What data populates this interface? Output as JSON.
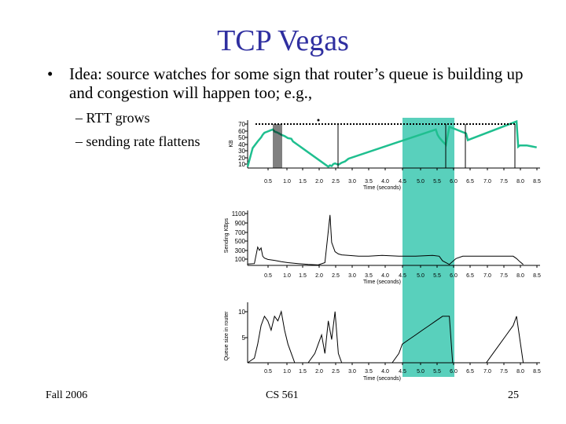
{
  "slide": {
    "title": "TCP Vegas",
    "bullet_marker": "•",
    "bullet_text": "Idea: source watches for some sign that router’s queue is building up and congestion will happen too; e.g.,",
    "sub_items": [
      "– RTT grows",
      "– sending rate flattens"
    ],
    "footer": {
      "left": "Fall 2006",
      "center": "CS 561",
      "right": "25"
    }
  },
  "colors": {
    "title": "#2f2fa0",
    "series": "#1fbf8f",
    "highlight": "#3cc8b0"
  },
  "x_ticks": [
    "0.5",
    "1.0",
    "1.5",
    "2.0",
    "2.5",
    "3.0",
    "3.5",
    "4.0",
    "4.5",
    "5.0",
    "5.5",
    "6.0",
    "6.5",
    "7.0",
    "7.5",
    "8.0",
    "8.5"
  ],
  "chart_data": [
    {
      "type": "line",
      "ylabel": "KB",
      "xlabel": "Time (seconds)",
      "yticks": [
        "70",
        "60",
        "50",
        "40",
        "30",
        "20",
        "10"
      ],
      "xlim": [
        0,
        8.7
      ],
      "ylim": [
        0,
        72
      ],
      "series": [
        {
          "x": [
            0,
            0.15,
            0.3,
            0.4,
            0.45,
            0.5,
            0.6,
            0.7,
            0.75,
            0.8,
            0.9,
            1.0,
            1.1,
            1.2,
            1.3,
            1.35,
            2.4,
            2.45,
            2.5,
            2.55,
            2.6,
            2.7,
            2.8,
            2.9,
            3.0,
            5.6,
            5.65,
            5.7,
            5.8,
            5.9,
            6.0,
            6.5,
            6.55,
            8.0,
            8.05,
            8.1,
            8.2,
            8.3,
            8.4,
            8.6
          ],
          "y": [
            2,
            30,
            40,
            46,
            50,
            53,
            55,
            57,
            58,
            55,
            53,
            50,
            48,
            45,
            44,
            40,
            2,
            4,
            3,
            6,
            7,
            5,
            8,
            10,
            14,
            58,
            50,
            46,
            40,
            35,
            62,
            52,
            42,
            70,
            32,
            34,
            34,
            34,
            33,
            31
          ]
        }
      ]
    },
    {
      "type": "line",
      "ylabel": "Sending KBps",
      "xlabel": "Time (seconds)",
      "yticks": [
        "1100",
        "900",
        "700",
        "500",
        "300",
        "100"
      ],
      "xlim": [
        0,
        8.7
      ],
      "ylim": [
        0,
        1200
      ],
      "series": [
        {
          "x": [
            0,
            0.2,
            0.3,
            0.35,
            0.4,
            0.45,
            0.5,
            0.6,
            0.8,
            1.0,
            1.2,
            1.5,
            1.8,
            2.1,
            2.3,
            2.45,
            2.5,
            2.6,
            2.7,
            2.8,
            3.0,
            3.3,
            3.6,
            4.0,
            4.5,
            5.0,
            5.5,
            5.7,
            5.8,
            6.0,
            6.2,
            6.4,
            7.0,
            7.5,
            7.9,
            8.0,
            8.1,
            8.2
          ],
          "y": [
            30,
            40,
            400,
            330,
            380,
            200,
            160,
            130,
            110,
            80,
            60,
            40,
            20,
            10,
            60,
            1100,
            500,
            300,
            250,
            230,
            220,
            200,
            200,
            220,
            200,
            200,
            220,
            200,
            100,
            20,
            150,
            200,
            200,
            200,
            200,
            150,
            80,
            20
          ]
        }
      ]
    },
    {
      "type": "line",
      "ylabel": "Queue size in router",
      "xlabel": "Time (seconds)",
      "yticks": [
        "10",
        "5"
      ],
      "xlim": [
        0,
        8.7
      ],
      "ylim": [
        0,
        13
      ],
      "series": [
        {
          "x": [
            0,
            0.2,
            0.3,
            0.4,
            0.5,
            0.6,
            0.7,
            0.8,
            0.9,
            1.0,
            1.1,
            1.2,
            1.3,
            1.4,
            1.8,
            2.0,
            2.1,
            2.2,
            2.3,
            2.4,
            2.5,
            2.6,
            2.7,
            2.8,
            4.3,
            4.5,
            4.6,
            4.8,
            5.0,
            5.2,
            5.4,
            5.6,
            5.8,
            6.0,
            6.1,
            7.1,
            7.3,
            7.5,
            7.7,
            7.9,
            8.0,
            8.2
          ],
          "y": [
            0,
            1,
            4,
            8,
            10,
            9,
            7,
            10,
            9,
            11,
            7,
            4,
            2,
            0,
            0,
            2,
            4,
            6,
            2,
            9,
            5,
            11,
            2,
            0,
            0,
            2,
            4,
            5,
            6,
            7,
            8,
            9,
            10,
            10,
            0,
            0,
            2,
            4,
            6,
            8,
            10,
            0
          ]
        }
      ]
    }
  ]
}
